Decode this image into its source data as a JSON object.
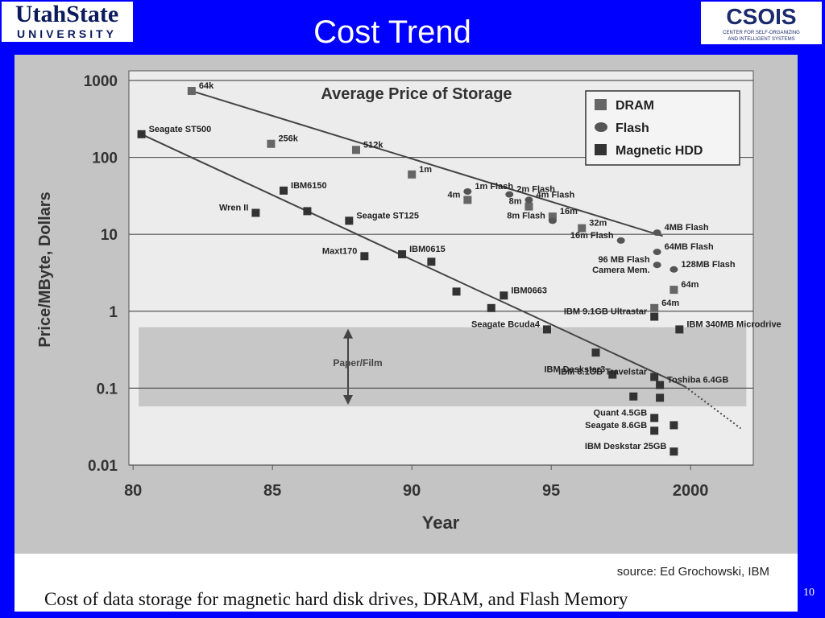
{
  "slide": {
    "title": "Cost Trend",
    "page": "10",
    "logo_left": [
      "UtahState",
      "UNIVERSITY"
    ],
    "logo_right": [
      "CSOIS",
      "CENTER FOR SELF-ORGANIZING",
      "AND INTELLIGENT SYSTEMS"
    ],
    "source": "source:  Ed Grochowski, IBM",
    "caption": "Cost of data storage for magnetic hard disk drives, DRAM, and Flash Memory"
  },
  "chart_data": {
    "type": "scatter",
    "title": "Average Price of  Storage",
    "x_label": "Year",
    "y_label": "Price/MByte, Dollars",
    "xlim": [
      79.85,
      102.25
    ],
    "xticks": [
      80,
      85,
      90,
      95,
      {
        "value": 100,
        "label": "2000"
      }
    ],
    "ylim": [
      0.01,
      1334
    ],
    "yticks": [
      0.01,
      0.1,
      1,
      10,
      100,
      1000
    ],
    "log_y": true,
    "grid": true,
    "legend": "top-right",
    "series": [
      {
        "name": "DRAM",
        "marker": "square",
        "color": "#666666",
        "x": [
          82.1,
          84.95,
          88.0,
          90.0,
          92.0,
          94.2,
          95.05,
          96.1,
          99.4,
          98.7
        ],
        "values": [
          730,
          150,
          125,
          60,
          28,
          23,
          17,
          12,
          1.9,
          1.1
        ],
        "labels": [
          "64k",
          "256k",
          "512k",
          "1m",
          "4m",
          "8m",
          "16m",
          "32m",
          "64m",
          "64m"
        ]
      },
      {
        "name": "Flash",
        "marker": "circle",
        "color": "#555555",
        "x": [
          92.0,
          93.5,
          94.2,
          95.05,
          97.5,
          98.8,
          98.8,
          98.8,
          99.4
        ],
        "values": [
          36,
          33,
          28,
          15,
          8.3,
          10.5,
          5.9,
          4,
          3.5
        ],
        "labels": [
          "1m Flash",
          "2m Flash",
          "4m Flash",
          "8m Flash",
          "16m Flash",
          "4MB Flash",
          "64MB Flash",
          [
            "96 MB Flash",
            "Camera Mem."
          ],
          "128MB Flash"
        ]
      },
      {
        "name": "Magnetic HDD",
        "marker": "square",
        "color": "#333333",
        "x": [
          80.3,
          84.4,
          85.4,
          86.25,
          87.75,
          88.3,
          89.65,
          90.7,
          91.6,
          93.3,
          92.85,
          94.85,
          98.7,
          99.6,
          96.6,
          97.2,
          98.7,
          98.9,
          97.95,
          98.9,
          98.7,
          98.7,
          99.4,
          99.4
        ],
        "values": [
          200,
          19,
          37,
          20,
          15,
          5.2,
          5.5,
          4.4,
          1.8,
          1.6,
          1.1,
          0.58,
          0.85,
          0.58,
          0.29,
          0.15,
          0.14,
          0.11,
          0.078,
          0.075,
          0.041,
          0.028,
          0.033,
          0.015
        ],
        "labels": [
          "Seagate ST500",
          "Wren II",
          "IBM6150",
          null,
          "Seagate ST125",
          "Maxt170",
          "IBM0615",
          null,
          null,
          "IBM0663",
          null,
          "Seagate Bcuda4",
          "IBM 9.1GB Ultrastar",
          "IBM 340MB Microdrive",
          null,
          "IBM Deskstar3",
          "IBM 8.1GB Travelstar",
          "Toshiba 6.4GB",
          null,
          null,
          "Quant 4.5GB",
          "Seagate 8.6GB",
          null,
          "IBM Deskstar 25GB"
        ]
      }
    ],
    "trend_lines": [
      {
        "x": [
          82.1,
          99.0
        ],
        "values": [
          730,
          9.5
        ]
      },
      {
        "x": [
          80.3,
          99.8
        ],
        "values": [
          200,
          0.105
        ]
      },
      {
        "x": [
          99.8,
          101.8
        ],
        "values": [
          0.105,
          0.03
        ],
        "style": "dotted"
      }
    ],
    "band": {
      "label": "Paper/Film",
      "x": [
        80.2,
        102
      ],
      "values": [
        0.058,
        0.62
      ]
    }
  }
}
